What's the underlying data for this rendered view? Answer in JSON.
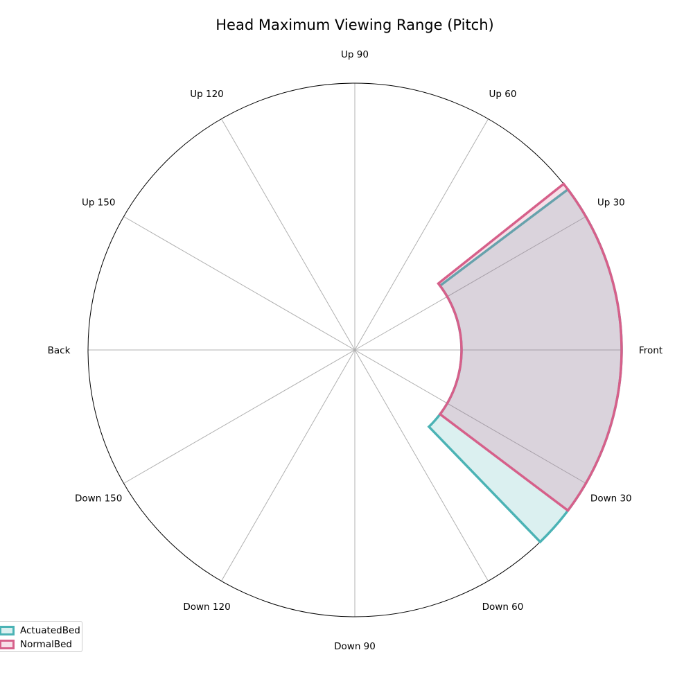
{
  "chart_data": {
    "type": "polar-area",
    "title": "Head Maximum Viewing Range (Pitch)",
    "angular_axis": {
      "zero_direction": "right",
      "labels": [
        {
          "angle": 0,
          "label": "Front"
        },
        {
          "angle": 30,
          "label": "Up 30"
        },
        {
          "angle": 60,
          "label": "Up 60"
        },
        {
          "angle": 90,
          "label": "Up 90"
        },
        {
          "angle": 120,
          "label": "Up 120"
        },
        {
          "angle": 150,
          "label": "Up 150"
        },
        {
          "angle": 180,
          "label": "Back"
        },
        {
          "angle": 210,
          "label": "Down 150"
        },
        {
          "angle": 240,
          "label": "Down 120"
        },
        {
          "angle": 270,
          "label": "Down 90"
        },
        {
          "angle": 300,
          "label": "Down 60"
        },
        {
          "angle": 330,
          "label": "Down 30"
        }
      ]
    },
    "radial_axis": {
      "inner_radius": 0.4,
      "outer_radius": 1.0,
      "grid_lines": true
    },
    "series": [
      {
        "name": "ActuatedBed",
        "color": "#4bb3b5",
        "start_angle_deg": -46,
        "end_angle_deg": 37,
        "inner_radius": 0.4,
        "outer_radius": 1.0
      },
      {
        "name": "NormalBed",
        "color": "#d6608a",
        "start_angle_deg": -37,
        "end_angle_deg": 38.5,
        "inner_radius": 0.4,
        "outer_radius": 1.0
      }
    ],
    "legend": {
      "placement": "bottom-left",
      "entries": [
        "ActuatedBed",
        "NormalBed"
      ]
    }
  }
}
